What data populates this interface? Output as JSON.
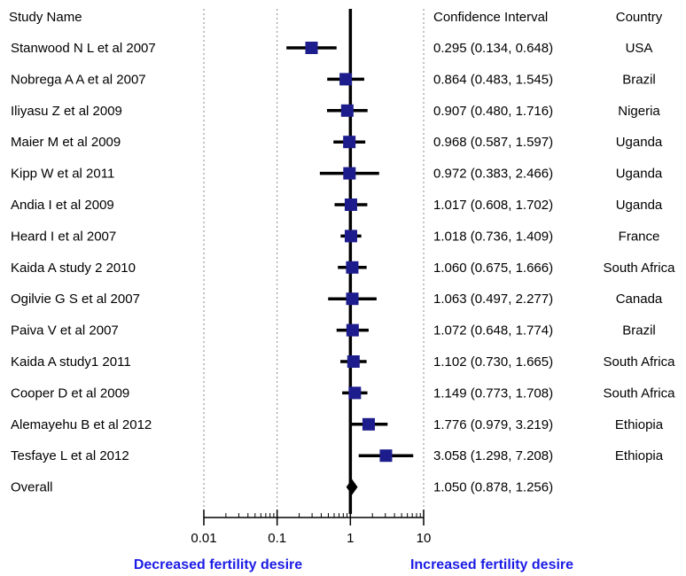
{
  "chart_data": {
    "type": "forest",
    "columns": {
      "study": "Study Name",
      "ci": "Confidence Interval",
      "country": "Country"
    },
    "x_axis": {
      "scale": "log",
      "range": [
        0.01,
        10
      ],
      "ticks": [
        "0.01",
        "0.1",
        "1",
        "10"
      ],
      "reference_line": 1
    },
    "directions": {
      "left": "Decreased fertility desire",
      "right": "Increased fertility desire"
    },
    "studies": [
      {
        "name": "Stanwood N L et al 2007",
        "estimate": 0.295,
        "lower": 0.134,
        "upper": 0.648,
        "ci_text": "0.295 (0.134, 0.648)",
        "country": "USA"
      },
      {
        "name": "Nobrega A A et al 2007",
        "estimate": 0.864,
        "lower": 0.483,
        "upper": 1.545,
        "ci_text": "0.864 (0.483, 1.545)",
        "country": "Brazil"
      },
      {
        "name": "Iliyasu Z et al 2009",
        "estimate": 0.907,
        "lower": 0.48,
        "upper": 1.716,
        "ci_text": "0.907 (0.480, 1.716)",
        "country": "Nigeria"
      },
      {
        "name": "Maier M et al 2009",
        "estimate": 0.968,
        "lower": 0.587,
        "upper": 1.597,
        "ci_text": "0.968 (0.587, 1.597)",
        "country": "Uganda"
      },
      {
        "name": "Kipp W et al 2011",
        "estimate": 0.972,
        "lower": 0.383,
        "upper": 2.466,
        "ci_text": "0.972 (0.383, 2.466)",
        "country": "Uganda"
      },
      {
        "name": "Andia I et al 2009",
        "estimate": 1.017,
        "lower": 0.608,
        "upper": 1.702,
        "ci_text": "1.017 (0.608, 1.702)",
        "country": "Uganda"
      },
      {
        "name": "Heard I et al 2007",
        "estimate": 1.018,
        "lower": 0.736,
        "upper": 1.409,
        "ci_text": "1.018 (0.736, 1.409)",
        "country": "France"
      },
      {
        "name": "Kaida A  study 2 2010",
        "estimate": 1.06,
        "lower": 0.675,
        "upper": 1.666,
        "ci_text": "1.060 (0.675, 1.666)",
        "country": "South Africa"
      },
      {
        "name": "Ogilvie G S et al 2007",
        "estimate": 1.063,
        "lower": 0.497,
        "upper": 2.277,
        "ci_text": "1.063 (0.497, 2.277)",
        "country": "Canada"
      },
      {
        "name": "Paiva V et al 2007",
        "estimate": 1.072,
        "lower": 0.648,
        "upper": 1.774,
        "ci_text": "1.072 (0.648, 1.774)",
        "country": "Brazil"
      },
      {
        "name": "Kaida A study1  2011",
        "estimate": 1.102,
        "lower": 0.73,
        "upper": 1.665,
        "ci_text": "1.102 (0.730, 1.665)",
        "country": "South Africa"
      },
      {
        "name": "Cooper D et al 2009",
        "estimate": 1.149,
        "lower": 0.773,
        "upper": 1.708,
        "ci_text": "1.149 (0.773, 1.708)",
        "country": "South Africa"
      },
      {
        "name": "Alemayehu B et al 2012",
        "estimate": 1.776,
        "lower": 0.979,
        "upper": 3.219,
        "ci_text": "1.776 (0.979, 3.219)",
        "country": "Ethiopia"
      },
      {
        "name": "Tesfaye L et al 2012",
        "estimate": 3.058,
        "lower": 1.298,
        "upper": 7.208,
        "ci_text": "3.058 (1.298, 7.208)",
        "country": "Ethiopia"
      }
    ],
    "overall": {
      "name": "Overall",
      "estimate": 1.05,
      "lower": 0.878,
      "upper": 1.256,
      "ci_text": "1.050 (0.878, 1.256)"
    },
    "colors": {
      "marker": "#1c1c8c",
      "direction_text": "#1c1ce6",
      "line": "#000000",
      "grid": "#888888"
    }
  }
}
